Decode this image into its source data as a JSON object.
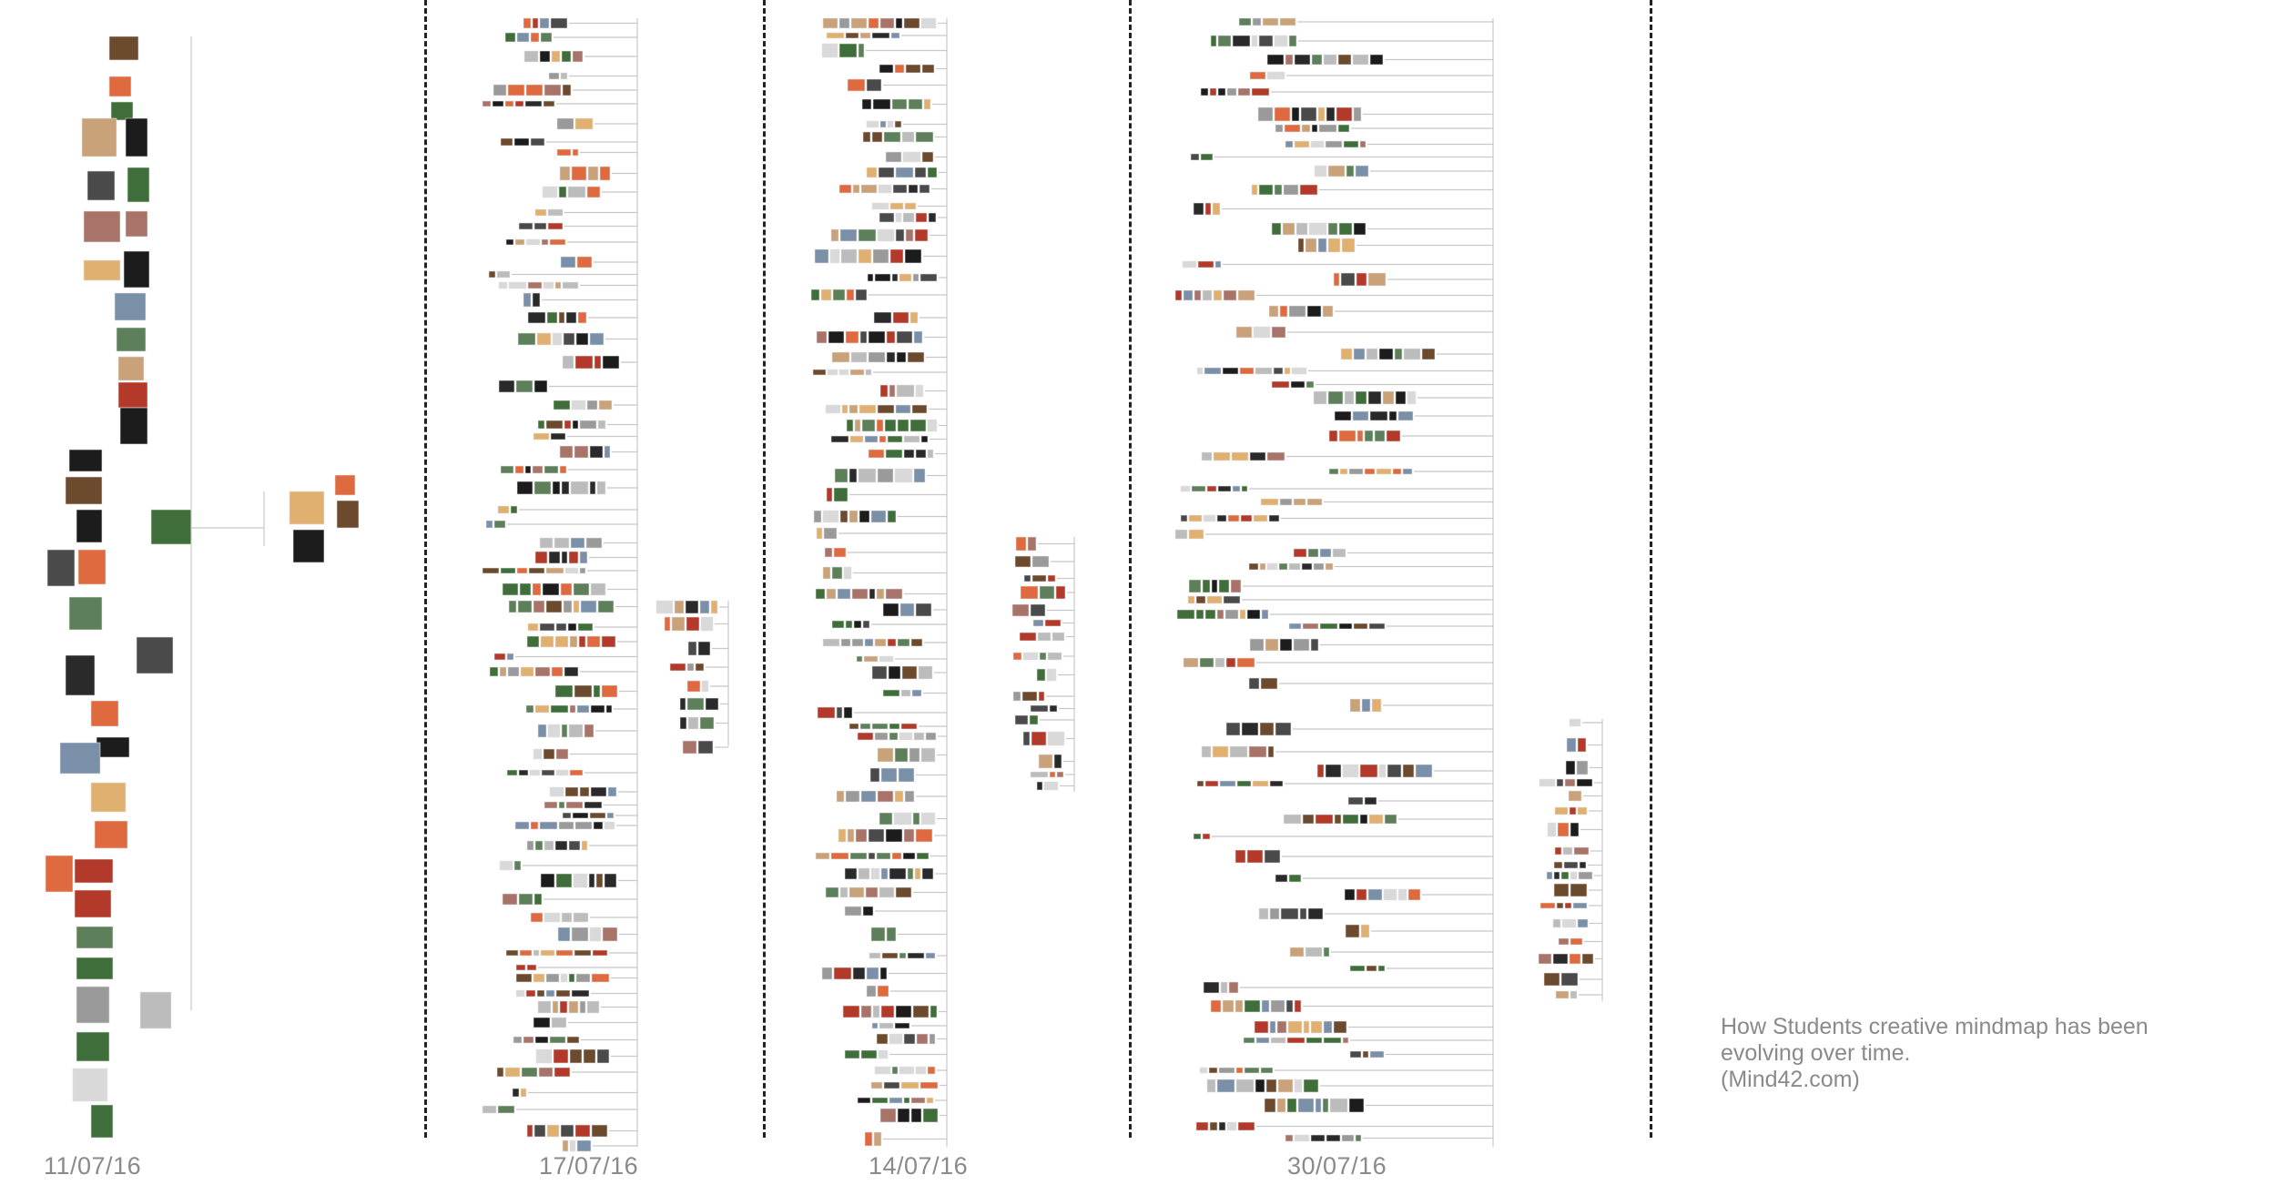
{
  "snapshots": [
    {
      "date": "11/07/16"
    },
    {
      "date": "17/07/16"
    },
    {
      "date": "14/07/16"
    },
    {
      "date": "30/07/16"
    }
  ],
  "caption": {
    "line1": "How Students creative mindmap has been",
    "line2": "evolving over time.",
    "line3": "(Mind42.com)"
  },
  "colors": {
    "text_gray": "#8a8a8a",
    "divider": "#222222",
    "branch_line": "#c8c8c8",
    "thumb_palette": [
      "#6b4a2e",
      "#2a2a2a",
      "#9a9a9a",
      "#c9a27a",
      "#3f6e3a",
      "#b33a2a",
      "#d9d9d9",
      "#4a4a4a",
      "#e0b070",
      "#7a8fa8",
      "#1c1c1c",
      "#a8746a",
      "#5d7f5a",
      "#e06a40",
      "#bcbcbc"
    ]
  }
}
